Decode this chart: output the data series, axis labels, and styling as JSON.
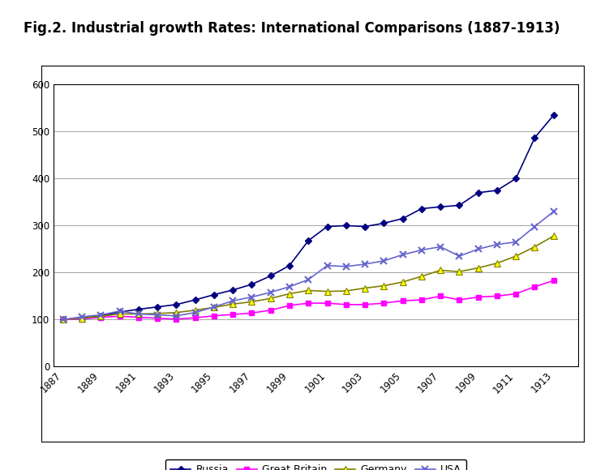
{
  "title": "Fig.2. Industrial growth Rates: International Comparisons (1887-1913)",
  "years": [
    1887,
    1888,
    1889,
    1890,
    1891,
    1892,
    1893,
    1894,
    1895,
    1896,
    1897,
    1898,
    1899,
    1900,
    1901,
    1902,
    1903,
    1904,
    1905,
    1906,
    1907,
    1908,
    1909,
    1910,
    1911,
    1912,
    1913
  ],
  "russia": [
    100,
    103,
    108,
    116,
    122,
    127,
    132,
    142,
    153,
    163,
    175,
    193,
    215,
    268,
    298,
    300,
    298,
    305,
    315,
    336,
    340,
    343,
    370,
    375,
    400,
    487,
    535
  ],
  "great_britain": [
    100,
    101,
    105,
    107,
    105,
    103,
    101,
    104,
    108,
    111,
    114,
    120,
    130,
    135,
    135,
    132,
    132,
    135,
    140,
    142,
    150,
    142,
    148,
    150,
    155,
    170,
    183
  ],
  "germany": [
    100,
    103,
    107,
    112,
    112,
    113,
    115,
    120,
    126,
    133,
    138,
    145,
    155,
    162,
    160,
    161,
    167,
    172,
    180,
    192,
    205,
    202,
    210,
    220,
    235,
    255,
    278
  ],
  "usa": [
    100,
    106,
    110,
    118,
    112,
    110,
    108,
    115,
    127,
    140,
    148,
    158,
    170,
    185,
    215,
    213,
    218,
    225,
    238,
    248,
    255,
    235,
    250,
    260,
    265,
    298,
    330
  ],
  "russia_color": "#000080",
  "great_britain_color": "#FF00FF",
  "germany_color": "#808000",
  "germany_marker_fill": "#FFFF00",
  "usa_color": "#6666CC",
  "ylim": [
    0,
    600
  ],
  "yticks": [
    0,
    100,
    200,
    300,
    400,
    500,
    600
  ],
  "background_color": "#FFFFFF",
  "plot_bg_color": "#FFFFFF",
  "legend_labels": [
    "Russia",
    "Great Britain",
    "Germany",
    "USA"
  ],
  "title_fontsize": 12,
  "tick_fontsize": 8.5
}
